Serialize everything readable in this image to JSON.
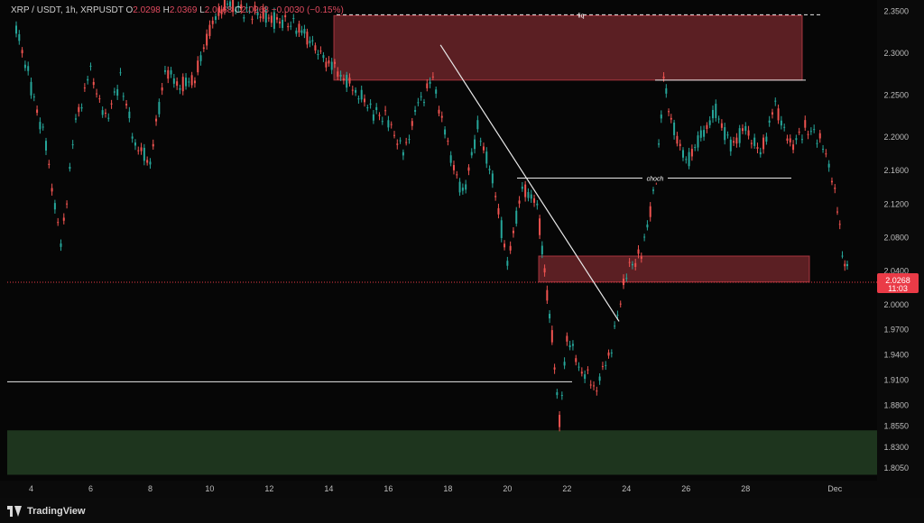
{
  "header": {
    "symbol": "XRP / USDT, 1h, XRPUSDT",
    "open_label": "O",
    "open": "2.0298",
    "high_label": "H",
    "high": "2.0369",
    "low_label": "L",
    "low": "2.0168",
    "close_label": "C",
    "close": "2.0268",
    "change": "−0.0030 (−0.15%)"
  },
  "last_price": {
    "value": "2.0268",
    "countdown": "11:03"
  },
  "brand": {
    "name": "TradingView"
  },
  "chart_data": {
    "type": "line",
    "title": "",
    "xlabel": "",
    "ylabel": "",
    "x_ticks": [
      "4",
      "6",
      "8",
      "10",
      "12",
      "14",
      "16",
      "18",
      "20",
      "22",
      "24",
      "26",
      "28",
      "Dec"
    ],
    "y_ticks": [
      "2.3500",
      "2.3000",
      "2.2500",
      "2.2000",
      "2.1600",
      "2.1200",
      "2.0800",
      "2.0400",
      "2.0000",
      "1.9700",
      "1.9400",
      "1.9100",
      "1.8800",
      "1.8550",
      "1.8300",
      "1.8050"
    ],
    "ylim": [
      1.79,
      2.355
    ],
    "grid": false,
    "series": [
      {
        "values": [
          {
            "x": "Nov 3 12:00",
            "y": 2.33
          },
          {
            "x": "Nov 4",
            "y": 2.26
          },
          {
            "x": "Nov 4 12:00",
            "y": 2.19
          },
          {
            "x": "Nov 5",
            "y": 2.07
          },
          {
            "x": "Nov 5 12:00",
            "y": 2.22
          },
          {
            "x": "Nov 6",
            "y": 2.28
          },
          {
            "x": "Nov 6 12:00",
            "y": 2.22
          },
          {
            "x": "Nov 7",
            "y": 2.27
          },
          {
            "x": "Nov 7 12:00",
            "y": 2.19
          },
          {
            "x": "Nov 8",
            "y": 2.17
          },
          {
            "x": "Nov 8 12:00",
            "y": 2.28
          },
          {
            "x": "Nov 9",
            "y": 2.26
          },
          {
            "x": "Nov 9 12:00",
            "y": 2.27
          },
          {
            "x": "Nov 10",
            "y": 2.33
          },
          {
            "x": "Nov 10 12:00",
            "y": 2.36
          },
          {
            "x": "Nov 13",
            "y": 2.33
          },
          {
            "x": "Nov 14",
            "y": 2.29
          },
          {
            "x": "Nov 14 12:00",
            "y": 2.27
          },
          {
            "x": "Nov 15",
            "y": 2.25
          },
          {
            "x": "Nov 15 12:00",
            "y": 2.23
          },
          {
            "x": "Nov 16",
            "y": 2.22
          },
          {
            "x": "Nov 16 12:00",
            "y": 2.18
          },
          {
            "x": "Nov 17",
            "y": 2.24
          },
          {
            "x": "Nov 17 12:00",
            "y": 2.27
          },
          {
            "x": "Nov 18",
            "y": 2.19
          },
          {
            "x": "Nov 18 12:00",
            "y": 2.13
          },
          {
            "x": "Nov 19",
            "y": 2.21
          },
          {
            "x": "Nov 19 12:00",
            "y": 2.15
          },
          {
            "x": "Nov 20",
            "y": 2.05
          },
          {
            "x": "Nov 20 12:00",
            "y": 2.14
          },
          {
            "x": "Nov 21",
            "y": 2.12
          },
          {
            "x": "Nov 21 06:00",
            "y": 2.04
          },
          {
            "x": "Nov 21 12:00",
            "y": 1.96
          },
          {
            "x": "Nov 21 18:00",
            "y": 1.86
          },
          {
            "x": "Nov 22",
            "y": 1.96
          },
          {
            "x": "Nov 22 12:00",
            "y": 1.92
          },
          {
            "x": "Nov 23",
            "y": 1.9
          },
          {
            "x": "Nov 23 12:00",
            "y": 1.95
          },
          {
            "x": "Nov 24",
            "y": 2.04
          },
          {
            "x": "Nov 24 12:00",
            "y": 2.06
          },
          {
            "x": "Nov 25",
            "y": 2.15
          },
          {
            "x": "Nov 25 06:00",
            "y": 2.27
          },
          {
            "x": "Nov 25 12:00",
            "y": 2.22
          },
          {
            "x": "Nov 26",
            "y": 2.17
          },
          {
            "x": "Nov 26 12:00",
            "y": 2.2
          },
          {
            "x": "Nov 27",
            "y": 2.23
          },
          {
            "x": "Nov 27 12:00",
            "y": 2.19
          },
          {
            "x": "Nov 28",
            "y": 2.21
          },
          {
            "x": "Nov 28 12:00",
            "y": 2.18
          },
          {
            "x": "Nov 29",
            "y": 2.24
          },
          {
            "x": "Nov 29 12:00",
            "y": 2.19
          },
          {
            "x": "Nov 30",
            "y": 2.21
          },
          {
            "x": "Nov 30 12:00",
            "y": 2.2
          },
          {
            "x": "Dec 1",
            "y": 2.14
          },
          {
            "x": "Dec 1 06:00",
            "y": 2.06
          },
          {
            "x": "Dec 1 12:00",
            "y": 2.0268
          }
        ]
      }
    ],
    "annotations": [
      {
        "label": "liq",
        "type": "dashed-line",
        "price": 2.346
      },
      {
        "label": "choch",
        "type": "line",
        "price": 2.151
      },
      {
        "label": "",
        "type": "horizontal-line",
        "price": 2.268
      },
      {
        "label": "",
        "type": "horizontal-line",
        "price": 1.908
      },
      {
        "label": "",
        "type": "trendline",
        "from": {
          "x": "Nov 17 18:00",
          "y": 2.31
        },
        "to": {
          "x": "Nov 23 18:00",
          "y": 1.98
        }
      },
      {
        "label": "",
        "type": "zone",
        "color": "#a3343c",
        "from": 2.345,
        "to": 2.268
      },
      {
        "label": "",
        "type": "zone",
        "color": "#a3343c",
        "from": 2.058,
        "to": 2.027
      },
      {
        "label": "",
        "type": "zone",
        "color": "#2a4a2a",
        "from": 1.85,
        "to": 1.797
      }
    ],
    "colors": {
      "up": "#26a69a",
      "down": "#ef5350",
      "zone_red": "#a3343c",
      "zone_green": "#2a4a2a",
      "price_tag": "#ea3b47"
    }
  }
}
